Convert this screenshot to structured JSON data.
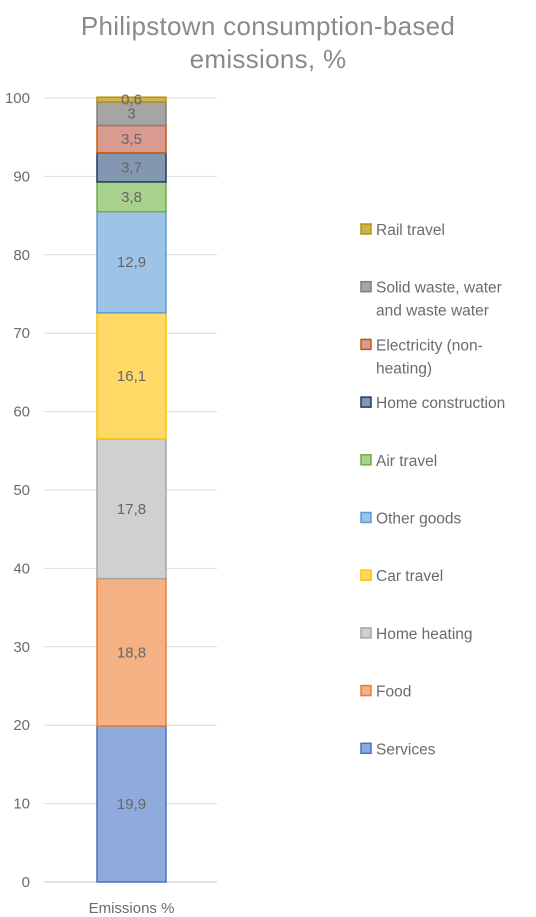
{
  "chart_data": {
    "type": "bar",
    "stacked": true,
    "title_lines": [
      "Philipstown consumption-based",
      "emissions, %"
    ],
    "categories": [
      "Emissions %"
    ],
    "ylim": [
      0,
      100
    ],
    "yticks": [
      0,
      10,
      20,
      30,
      40,
      50,
      60,
      70,
      80,
      90,
      100
    ],
    "grid": true,
    "legend_position": "right",
    "series": [
      {
        "name": "Services",
        "value": 19.9,
        "label": "19,9",
        "color": "#8faadc",
        "edge": "#4472c4"
      },
      {
        "name": "Food",
        "value": 18.8,
        "label": "18,8",
        "color": "#f4b183",
        "edge": "#ed7d31"
      },
      {
        "name": "Home heating",
        "value": 17.8,
        "label": "17,8",
        "color": "#d0d0d0",
        "edge": "#a5a5a5"
      },
      {
        "name": "Car travel",
        "value": 16.1,
        "label": "16,1",
        "color": "#ffd966",
        "edge": "#ffc000"
      },
      {
        "name": "Other goods",
        "value": 12.9,
        "label": "12,9",
        "color": "#9dc3e6",
        "edge": "#5b9bd5"
      },
      {
        "name": "Air travel",
        "value": 3.8,
        "label": "3,8",
        "color": "#a9d18e",
        "edge": "#70ad47"
      },
      {
        "name": "Home construction",
        "value": 3.7,
        "label": "3,7",
        "color": "#8497b0",
        "edge": "#203864"
      },
      {
        "name": "Electricity (non-heating)",
        "legend_lines": [
          "Electricity (non-",
          "heating)"
        ],
        "value": 3.5,
        "label": "3,5",
        "color": "#d99b8f",
        "edge": "#c55a11"
      },
      {
        "name": "Solid waste, water and waste water",
        "legend_lines": [
          "Solid waste, water",
          "and waste water"
        ],
        "value": 3.0,
        "label": "3",
        "color": "#a5a5a5",
        "edge": "#7f7f7f"
      },
      {
        "name": "Rail travel",
        "value": 0.6,
        "label": "0,6",
        "color": "#c9b458",
        "edge": "#bf9000"
      }
    ]
  }
}
